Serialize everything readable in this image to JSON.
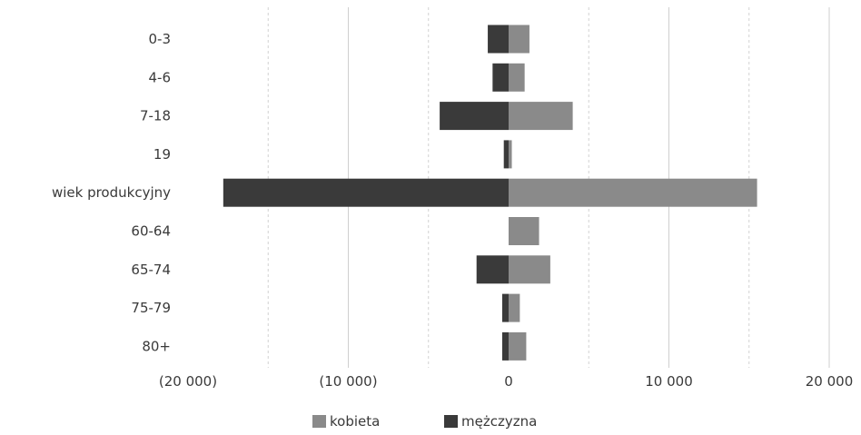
{
  "chart_data": {
    "type": "bar",
    "orientation": "horizontal",
    "stacked": "diverging",
    "categories": [
      "0-3",
      "4-6",
      "7-18",
      "19",
      "wiek produkcyjny",
      "60-64",
      "65-74",
      "75-79",
      "80+"
    ],
    "series": [
      {
        "name": "kobieta",
        "color": "#8a8a8a",
        "values": [
          1300,
          1000,
          4000,
          200,
          15500,
          1900,
          2600,
          700,
          1100
        ]
      },
      {
        "name": "mężczyzna",
        "color": "#3a3a3a",
        "values": [
          -1300,
          -1000,
          -4300,
          -300,
          -17800,
          0,
          -2000,
          -400,
          -400
        ]
      }
    ],
    "xlim": [
      -20000,
      20000
    ],
    "ticks": [
      {
        "value": -20000,
        "label": "(20 000)"
      },
      {
        "value": -10000,
        "label": "(10 000)"
      },
      {
        "value": 0,
        "label": "0"
      },
      {
        "value": 10000,
        "label": "10 000"
      },
      {
        "value": 20000,
        "label": "20 000"
      }
    ],
    "gridlines": [
      -15000,
      -10000,
      -5000,
      5000,
      10000,
      15000,
      20000
    ],
    "grid": true,
    "legend_position": "bottom",
    "title": "",
    "xlabel": "",
    "ylabel": ""
  }
}
